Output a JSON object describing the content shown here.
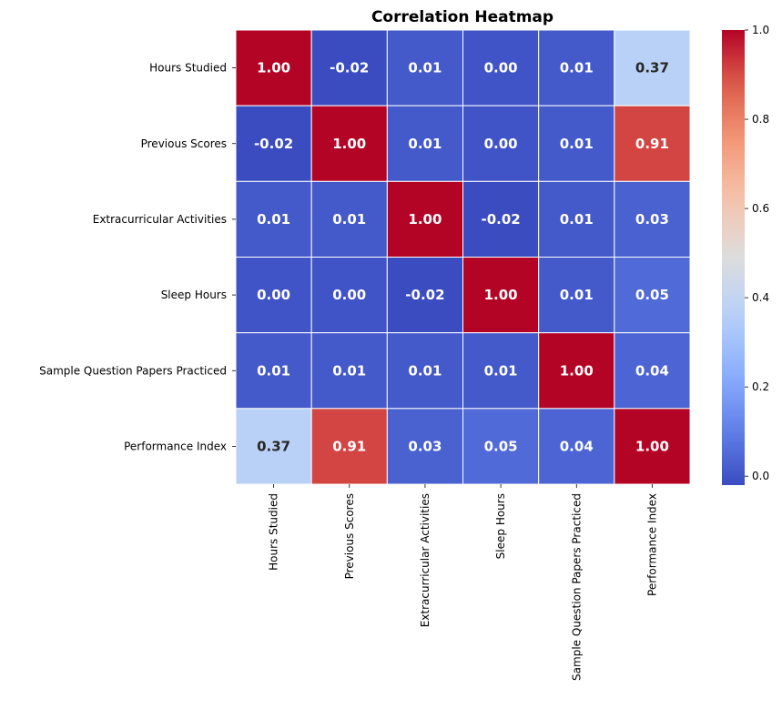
{
  "chart_data": {
    "type": "heatmap",
    "title": "Correlation Heatmap",
    "rows": [
      "Hours Studied",
      "Previous Scores",
      "Extracurricular Activities",
      "Sleep Hours",
      "Sample Question Papers Practiced",
      "Performance Index"
    ],
    "columns": [
      "Hours Studied",
      "Previous Scores",
      "Extracurricular Activities",
      "Sleep Hours",
      "Sample Question Papers Practiced",
      "Performance Index"
    ],
    "values": [
      [
        1.0,
        -0.02,
        0.01,
        0.0,
        0.01,
        0.37
      ],
      [
        -0.02,
        1.0,
        0.01,
        0.0,
        0.01,
        0.91
      ],
      [
        0.01,
        0.01,
        1.0,
        -0.02,
        0.01,
        0.03
      ],
      [
        0.0,
        0.0,
        -0.02,
        1.0,
        0.01,
        0.05
      ],
      [
        0.01,
        0.01,
        0.01,
        0.01,
        1.0,
        0.04
      ],
      [
        0.37,
        0.91,
        0.03,
        0.05,
        0.04,
        1.0
      ]
    ],
    "annotation_format": "2 decimals",
    "colormap": "coolwarm",
    "color_range": [
      -0.02,
      1.0
    ],
    "colorbar_ticks": [
      0.0,
      0.2,
      0.4,
      0.6,
      0.8,
      1.0
    ],
    "colorbar_tick_labels": [
      "0.0",
      "0.2",
      "0.4",
      "0.6",
      "0.8",
      "1.0"
    ],
    "cell_border_color": "#ffffff",
    "grid": false,
    "xlabel": "",
    "ylabel": ""
  }
}
